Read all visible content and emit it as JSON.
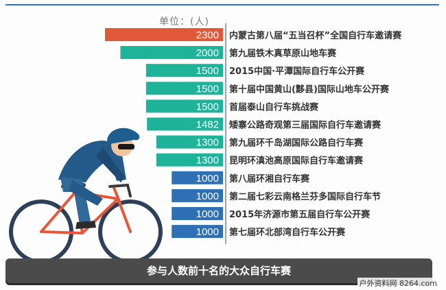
{
  "unit_label": "单位：(人)",
  "title": "参与人数前十名的大众自行车赛",
  "watermark": "户外资料网 8264.com",
  "colors": {
    "top": "#e05a3a",
    "teal": "#1fb39a",
    "blue": "#2f6fb3"
  },
  "chart_data": {
    "type": "bar",
    "orientation": "horizontal",
    "categories": [
      "内蒙古第八届“五当召杯”全国自行车邀请赛",
      "第九届铁木真草原山地车赛",
      "2015中国·平潭国际自行车公开赛",
      "第十届中国黄山(黟县)国际山地车公开赛",
      "首届泰山自行车挑战赛",
      "矮寨公路奇观第三届国际自行车邀请赛",
      "第九届环千岛湖国际公路自行车赛",
      "昆明环滇池高原国际自行车邀请赛",
      "第八届环湘自行车赛",
      "第二届七彩云南格兰芬多国际自行车节",
      "2015年济源市第五届自行车公开赛",
      "第七届环北部湾自行车公开赛"
    ],
    "values": [
      2300,
      2000,
      1500,
      1500,
      1500,
      1482,
      1300,
      1300,
      1000,
      1000,
      1000,
      1000
    ],
    "value_labels": [
      "2300",
      "2000",
      "1500",
      "1500",
      "1500",
      "1482",
      "1300",
      "1300",
      "1000",
      "1000",
      "1000",
      "1000"
    ],
    "bar_colors": [
      "#e05a3a",
      "#1fb39a",
      "#1fb39a",
      "#1fb39a",
      "#1fb39a",
      "#1fb39a",
      "#1fb39a",
      "#1fb39a",
      "#2f6fb3",
      "#2f6fb3",
      "#2f6fb3",
      "#2f6fb3"
    ],
    "xlim": [
      0,
      2300
    ],
    "bars_grow_from": "right",
    "grid": false
  }
}
